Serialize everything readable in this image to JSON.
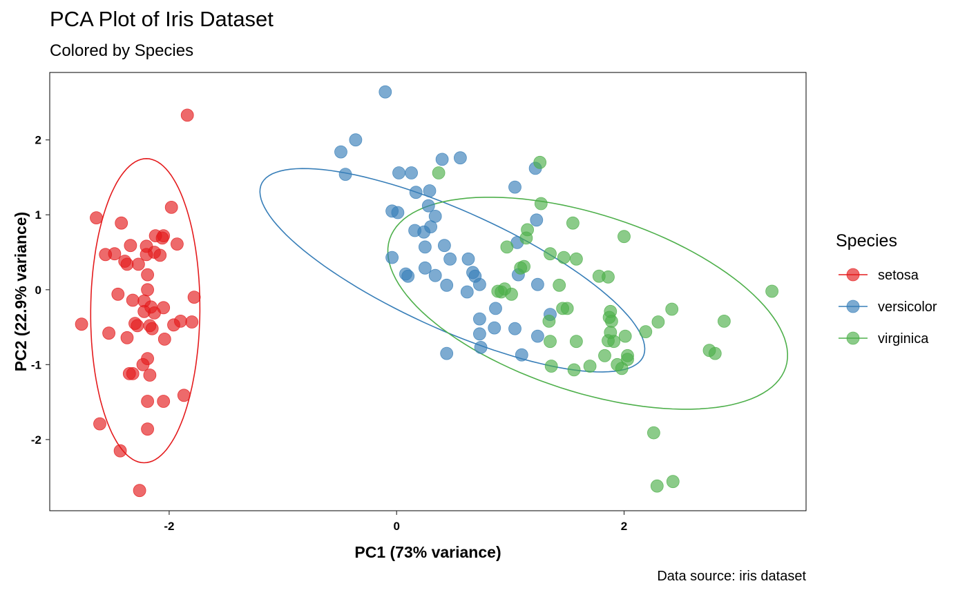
{
  "chart_data": {
    "type": "scatter",
    "title": "PCA Plot of Iris Dataset",
    "subtitle": "Colored by Species",
    "caption": "Data source: iris dataset",
    "xlabel": "PC1 (73% variance)",
    "ylabel": "PC2 (22.9% variance)",
    "xlim": [
      -3.05,
      3.6
    ],
    "ylim": [
      -2.95,
      2.9
    ],
    "x_ticks": [
      -2,
      0,
      2
    ],
    "x_tick_labels": [
      "-2",
      "0",
      "2"
    ],
    "y_ticks": [
      -2,
      -1,
      0,
      1,
      2
    ],
    "y_tick_labels": [
      "-2",
      "-1",
      "0",
      "1",
      "2"
    ],
    "grid": false,
    "legend": {
      "title": "Species",
      "position": "right"
    },
    "ellipses": [
      {
        "series": "setosa",
        "cx": -2.21,
        "cy": -0.28,
        "rx": 0.48,
        "ry": 2.03,
        "angle_deg": -0.3
      },
      {
        "series": "versicolor",
        "cx": 0.49,
        "cy": 0.26,
        "rx": 2.05,
        "ry": 0.71,
        "angle_deg": -37
      },
      {
        "series": "virginica",
        "cx": 1.68,
        "cy": -0.18,
        "rx": 1.97,
        "ry": 1.1,
        "angle_deg": -33
      }
    ],
    "series": [
      {
        "name": "setosa",
        "color": "#E41A1C",
        "points": [
          [
            -1.84,
            2.33
          ],
          [
            -1.98,
            1.1
          ],
          [
            -2.64,
            0.96
          ],
          [
            -2.42,
            0.89
          ],
          [
            -2.48,
            0.48
          ],
          [
            -2.34,
            0.59
          ],
          [
            -2.2,
            0.58
          ],
          [
            -2.12,
            0.72
          ],
          [
            -2.06,
            0.69
          ],
          [
            -2.05,
            0.72
          ],
          [
            -1.93,
            0.61
          ],
          [
            -2.2,
            0.47
          ],
          [
            -2.13,
            0.5
          ],
          [
            -2.08,
            0.46
          ],
          [
            -2.39,
            0.38
          ],
          [
            -2.37,
            0.34
          ],
          [
            -2.27,
            0.34
          ],
          [
            -2.19,
            0.2
          ],
          [
            -2.56,
            0.47
          ],
          [
            -2.19,
            0.0
          ],
          [
            -2.45,
            -0.06
          ],
          [
            -2.32,
            -0.14
          ],
          [
            -2.22,
            -0.15
          ],
          [
            -2.16,
            -0.23
          ],
          [
            -2.13,
            -0.31
          ],
          [
            -2.05,
            -0.24
          ],
          [
            -1.78,
            -0.1
          ],
          [
            -2.22,
            -0.29
          ],
          [
            -2.3,
            -0.45
          ],
          [
            -2.28,
            -0.48
          ],
          [
            -2.17,
            -0.48
          ],
          [
            -2.15,
            -0.52
          ],
          [
            -1.96,
            -0.47
          ],
          [
            -1.9,
            -0.42
          ],
          [
            -1.8,
            -0.43
          ],
          [
            -2.77,
            -0.46
          ],
          [
            -2.53,
            -0.58
          ],
          [
            -2.37,
            -0.64
          ],
          [
            -2.04,
            -0.66
          ],
          [
            -2.19,
            -0.92
          ],
          [
            -2.23,
            -1.0
          ],
          [
            -2.17,
            -1.14
          ],
          [
            -2.35,
            -1.12
          ],
          [
            -2.32,
            -1.12
          ],
          [
            -1.87,
            -1.41
          ],
          [
            -2.19,
            -1.49
          ],
          [
            -2.05,
            -1.49
          ],
          [
            -2.61,
            -1.79
          ],
          [
            -2.19,
            -1.86
          ],
          [
            -2.43,
            -2.15
          ],
          [
            -2.26,
            -2.68
          ]
        ]
      },
      {
        "name": "versicolor",
        "color": "#377EB8",
        "points": [
          [
            -0.1,
            2.64
          ],
          [
            -0.36,
            2.0
          ],
          [
            -0.49,
            1.84
          ],
          [
            -0.45,
            1.54
          ],
          [
            0.4,
            1.74
          ],
          [
            0.56,
            1.76
          ],
          [
            1.22,
            1.62
          ],
          [
            0.02,
            1.56
          ],
          [
            0.13,
            1.56
          ],
          [
            1.04,
            1.37
          ],
          [
            0.17,
            1.3
          ],
          [
            0.29,
            1.32
          ],
          [
            0.28,
            1.12
          ],
          [
            -0.04,
            1.05
          ],
          [
            0.01,
            1.03
          ],
          [
            0.34,
            0.98
          ],
          [
            0.3,
            0.84
          ],
          [
            0.16,
            0.79
          ],
          [
            0.24,
            0.77
          ],
          [
            1.23,
            0.93
          ],
          [
            1.06,
            0.63
          ],
          [
            0.42,
            0.59
          ],
          [
            0.25,
            0.57
          ],
          [
            0.25,
            0.29
          ],
          [
            0.47,
            0.41
          ],
          [
            0.63,
            0.41
          ],
          [
            -0.04,
            0.43
          ],
          [
            0.67,
            0.23
          ],
          [
            0.69,
            0.18
          ],
          [
            0.34,
            0.19
          ],
          [
            0.08,
            0.21
          ],
          [
            0.1,
            0.18
          ],
          [
            0.44,
            0.06
          ],
          [
            0.73,
            0.07
          ],
          [
            1.24,
            0.07
          ],
          [
            1.07,
            0.2
          ],
          [
            0.62,
            -0.03
          ],
          [
            0.87,
            -0.25
          ],
          [
            0.73,
            -0.39
          ],
          [
            1.35,
            -0.33
          ],
          [
            0.86,
            -0.51
          ],
          [
            1.04,
            -0.52
          ],
          [
            0.73,
            -0.59
          ],
          [
            0.74,
            -0.77
          ],
          [
            1.24,
            -0.62
          ],
          [
            0.44,
            -0.85
          ],
          [
            1.1,
            -0.87
          ]
        ]
      },
      {
        "name": "virginica",
        "color": "#4DAF4A",
        "points": [
          [
            0.37,
            1.56
          ],
          [
            1.26,
            1.7
          ],
          [
            1.27,
            1.15
          ],
          [
            1.15,
            0.8
          ],
          [
            1.14,
            0.69
          ],
          [
            1.55,
            0.89
          ],
          [
            2.0,
            0.71
          ],
          [
            0.97,
            0.57
          ],
          [
            1.35,
            0.48
          ],
          [
            1.12,
            0.31
          ],
          [
            1.09,
            0.29
          ],
          [
            1.47,
            0.43
          ],
          [
            1.58,
            0.41
          ],
          [
            0.95,
            0.01
          ],
          [
            0.92,
            -0.03
          ],
          [
            1.01,
            -0.06
          ],
          [
            1.43,
            0.06
          ],
          [
            1.78,
            0.18
          ],
          [
            1.86,
            0.17
          ],
          [
            0.89,
            -0.02
          ],
          [
            1.46,
            -0.25
          ],
          [
            1.5,
            -0.25
          ],
          [
            1.34,
            -0.42
          ],
          [
            1.88,
            -0.29
          ],
          [
            1.87,
            -0.37
          ],
          [
            1.89,
            -0.42
          ],
          [
            2.42,
            -0.26
          ],
          [
            2.3,
            -0.43
          ],
          [
            2.19,
            -0.56
          ],
          [
            2.88,
            -0.42
          ],
          [
            3.3,
            -0.02
          ],
          [
            1.35,
            -0.69
          ],
          [
            1.58,
            -0.69
          ],
          [
            1.88,
            -0.57
          ],
          [
            1.86,
            -0.68
          ],
          [
            1.91,
            -0.69
          ],
          [
            2.01,
            -0.62
          ],
          [
            2.75,
            -0.81
          ],
          [
            2.8,
            -0.85
          ],
          [
            1.83,
            -0.88
          ],
          [
            2.03,
            -0.88
          ],
          [
            2.03,
            -0.93
          ],
          [
            1.94,
            -1.0
          ],
          [
            1.98,
            -1.05
          ],
          [
            1.36,
            -1.02
          ],
          [
            1.7,
            -1.02
          ],
          [
            1.56,
            -1.07
          ],
          [
            2.26,
            -1.91
          ],
          [
            2.29,
            -2.62
          ],
          [
            2.43,
            -2.56
          ]
        ]
      }
    ]
  }
}
